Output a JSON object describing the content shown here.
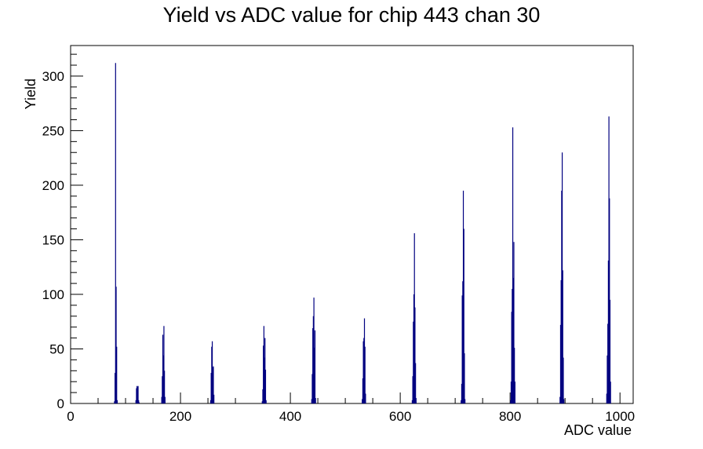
{
  "chart_data": {
    "type": "bar",
    "title": "Yield vs ADC value for chip 443 chan 30",
    "xlabel": "ADC value",
    "ylabel": "Yield",
    "xlim": [
      0,
      1024
    ],
    "ylim": [
      0,
      328
    ],
    "x_ticks": [
      0,
      200,
      400,
      600,
      800,
      1000
    ],
    "y_ticks": [
      0,
      50,
      100,
      150,
      200,
      250,
      300
    ],
    "grid": false,
    "legend": "none",
    "line_color": "#000080",
    "series": [
      {
        "x": [
          79,
          80,
          81,
          82,
          83,
          84,
          118,
          119,
          120,
          121,
          122,
          123,
          124,
          165,
          166,
          167,
          168,
          169,
          170,
          171,
          254,
          255,
          256,
          257,
          258,
          259,
          260,
          348,
          349,
          350,
          351,
          352,
          353,
          354,
          355,
          438,
          439,
          440,
          441,
          442,
          443,
          444,
          445,
          530,
          531,
          532,
          533,
          534,
          535,
          536,
          621,
          622,
          623,
          624,
          625,
          626,
          627,
          628,
          710,
          711,
          712,
          713,
          714,
          715,
          716,
          717,
          800,
          801,
          802,
          803,
          804,
          805,
          806,
          807,
          808,
          890,
          891,
          892,
          893,
          894,
          895,
          896,
          897,
          975,
          976,
          977,
          978,
          979,
          980,
          981,
          982
        ],
        "values": [
          2,
          28,
          312,
          107,
          52,
          3,
          3,
          14,
          16,
          15,
          16,
          3,
          1,
          6,
          25,
          63,
          44,
          71,
          30,
          6,
          3,
          28,
          52,
          57,
          33,
          34,
          8,
          2,
          13,
          53,
          71,
          42,
          60,
          31,
          3,
          4,
          27,
          69,
          80,
          97,
          51,
          67,
          5,
          4,
          23,
          57,
          60,
          78,
          52,
          9,
          3,
          25,
          75,
          100,
          156,
          88,
          37,
          5,
          3,
          18,
          99,
          112,
          195,
          160,
          46,
          4,
          3,
          20,
          84,
          105,
          253,
          115,
          148,
          51,
          20,
          6,
          72,
          113,
          195,
          230,
          122,
          42,
          4,
          9,
          44,
          73,
          131,
          263,
          188,
          95,
          20
        ]
      }
    ]
  }
}
